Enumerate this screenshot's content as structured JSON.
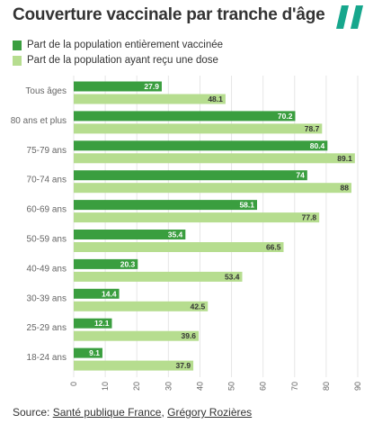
{
  "header": {
    "title": "Couverture vaccinale par tranche d'âge"
  },
  "logo": {
    "name": "huffpost-logo",
    "color": "#17a78d"
  },
  "colors": {
    "full": "#3a9e3f",
    "dose": "#b6dd8f",
    "grid": "#e6e6e6",
    "label_text": "#ffffff",
    "dose_label_text": "#333333"
  },
  "chart_data": {
    "type": "bar",
    "orientation": "horizontal",
    "title": "Couverture vaccinale par tranche d'âge",
    "categories": [
      "Tous âges",
      "80 ans et plus",
      "75-79 ans",
      "70-74 ans",
      "60-69 ans",
      "50-59 ans",
      "40-49 ans",
      "30-39 ans",
      "25-29 ans",
      "18-24 ans"
    ],
    "series": [
      {
        "name": "Part de la population entièrement vaccinée",
        "values": [
          27.9,
          70.2,
          80.4,
          74,
          58.1,
          35.4,
          20.3,
          14.4,
          12.1,
          9.1
        ],
        "labels": [
          "27.9",
          "70.2",
          "80.4",
          "74",
          "58.1",
          "35.4",
          "20.3",
          "14.4",
          "12.1",
          "9.1"
        ]
      },
      {
        "name": "Part de la population ayant reçu une dose",
        "values": [
          48.1,
          78.7,
          89.1,
          88,
          77.8,
          66.5,
          53.4,
          42.5,
          39.6,
          37.9
        ],
        "labels": [
          "48.1",
          "78.7",
          "89.1",
          "88",
          "77.8",
          "66.5",
          "53.4",
          "42.5",
          "39.6",
          "37.9"
        ]
      }
    ],
    "xlim": [
      0,
      90
    ],
    "xticks": [
      0,
      10,
      20,
      30,
      40,
      50,
      60,
      70,
      80,
      90
    ],
    "xtick_labels": [
      "0",
      "10",
      "20",
      "30",
      "40",
      "50",
      "60",
      "70",
      "80",
      "90"
    ],
    "xlabel": "",
    "ylabel": "",
    "grid": true,
    "legend": "top-left"
  },
  "footer": {
    "prefix": "Source: ",
    "source1": "Santé publique France",
    "separator": ", ",
    "source2": "Grégory Rozières"
  }
}
